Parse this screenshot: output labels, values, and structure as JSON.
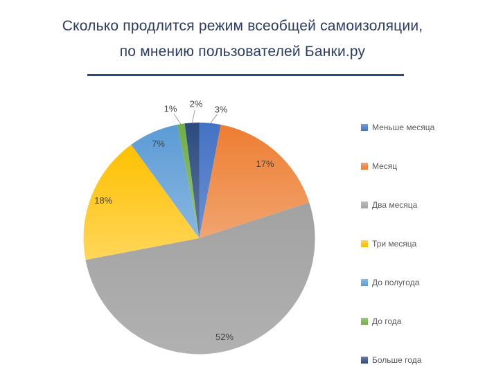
{
  "title": {
    "lines": [
      "Сколько продлится режим всеобщей самоизоляции,",
      "по мнению пользователей Банки.ру"
    ],
    "full": "Сколько продлится режим всеобщей самоизоляции, по мнению пользователей Банки.ру",
    "color": "#2B3C63",
    "underline_color": "#2D4A7C"
  },
  "chart_data": {
    "type": "pie",
    "title": "Сколько продлится режим всеобщей самоизоляции, по мнению пользователей Банки.ру",
    "categories": [
      "Меньше месяца",
      "Месяц",
      "Два месяца",
      "Три месяца",
      "До полугода",
      "До года",
      "Больше года"
    ],
    "values": [
      3,
      17,
      52,
      18,
      7,
      1,
      2
    ],
    "slices": [
      {
        "label": "Меньше месяца",
        "value": 3,
        "display": "3%",
        "color": "#4472C4",
        "label_placement": "outside"
      },
      {
        "label": "Месяц",
        "value": 17,
        "display": "17%",
        "color": "#ED7D31",
        "label_placement": "inside"
      },
      {
        "label": "Два месяца",
        "value": 52,
        "display": "52%",
        "color": "#A2A2A2",
        "label_placement": "inside"
      },
      {
        "label": "Три месяца",
        "value": 18,
        "display": "18%",
        "color": "#FFC000",
        "label_placement": "inside"
      },
      {
        "label": "До полугода",
        "value": 7,
        "display": "7%",
        "color": "#5B9BD5",
        "label_placement": "inside"
      },
      {
        "label": "До года",
        "value": 1,
        "display": "1%",
        "color": "#70AD47",
        "label_placement": "outside"
      },
      {
        "label": "Больше года",
        "value": 2,
        "display": "2%",
        "color": "#2B4A7E",
        "label_placement": "outside"
      }
    ],
    "start_angle_deg": 0,
    "direction": "clockwise",
    "data_labels": "percent",
    "label_color": "#404040",
    "leader_line_color": "#9E9E9E",
    "legend_position": "right",
    "legend_text_color": "#595959"
  }
}
